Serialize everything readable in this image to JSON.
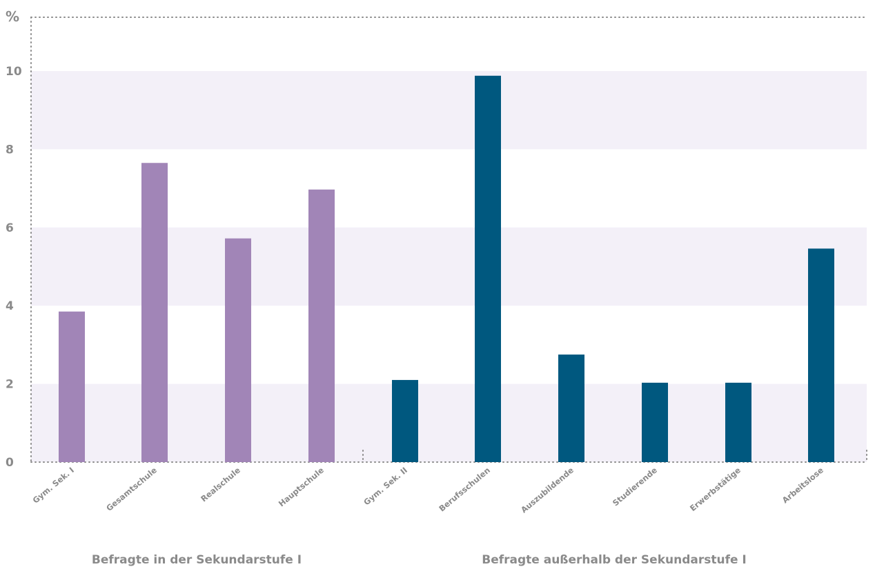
{
  "chart_data": {
    "type": "bar",
    "ylabel": "%",
    "ylim": [
      0,
      10
    ],
    "yticks": [
      "0",
      "2",
      "4",
      "6",
      "8",
      "10"
    ],
    "grid": "alternating horizontal bands",
    "categories": [
      "Gym. Sek. I",
      "Gesamtschule",
      "Realschule",
      "Hauptschule",
      "Gym. Sek. II",
      "Berufsschulen",
      "Auszubildende",
      "Studierende",
      "Erwerbstätige",
      "Arbeitslose"
    ],
    "values": [
      3.85,
      7.65,
      5.72,
      6.97,
      2.1,
      9.88,
      2.75,
      2.03,
      2.03,
      5.46
    ],
    "groups": [
      {
        "label": "Befragte in der Sekundarstufe I",
        "color": "#a185b7",
        "indices": [
          0,
          1,
          2,
          3
        ]
      },
      {
        "label": "Befragte außerhalb der Sekundarstufe I",
        "color": "#00587f",
        "indices": [
          4,
          5,
          6,
          7,
          8,
          9
        ]
      }
    ],
    "colors": {
      "band": "#f3f0f8",
      "axis": "#8a8a8a",
      "text": "#8a8a8a"
    }
  }
}
